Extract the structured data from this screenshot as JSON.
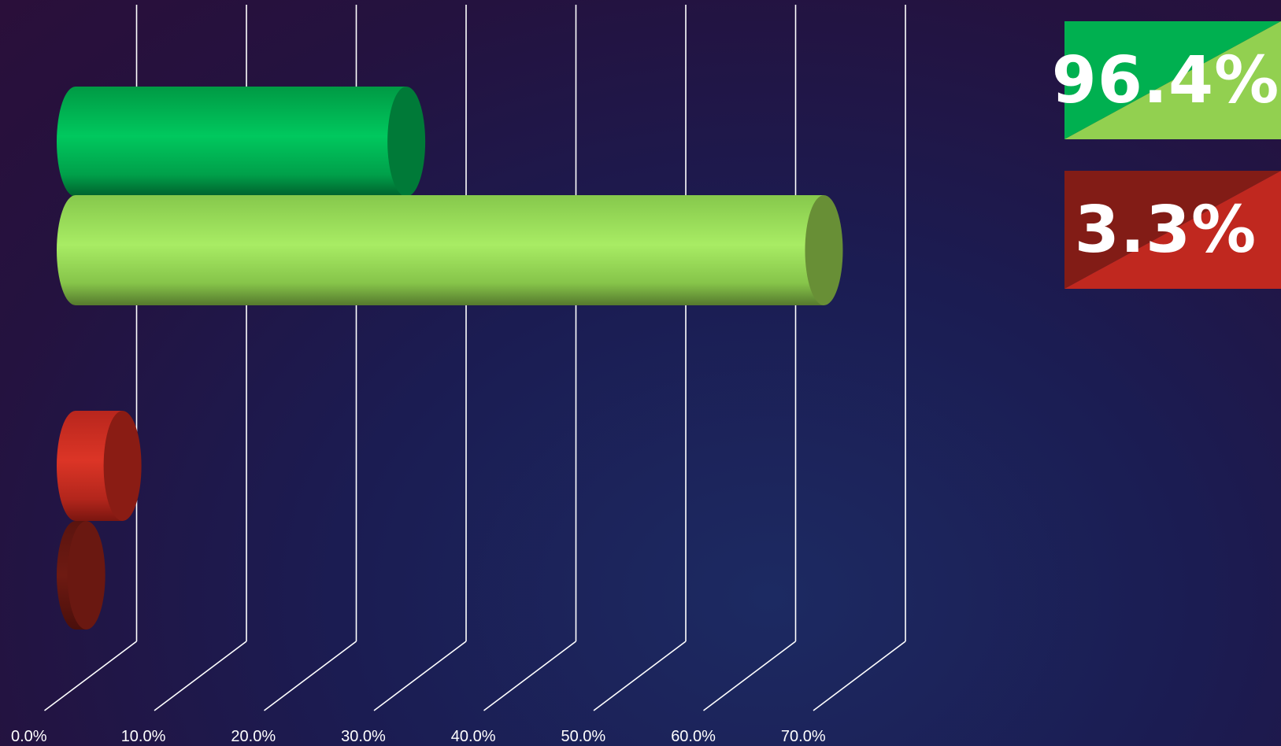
{
  "chart_data": {
    "type": "bar",
    "orientation": "horizontal",
    "style": "3d-cylinder",
    "title": "",
    "xlabel": "",
    "ylabel": "",
    "xlim": [
      0,
      70
    ],
    "x_ticks": [
      "0.0%",
      "10.0%",
      "20.0%",
      "30.0%",
      "40.0%",
      "50.0%",
      "60.0%",
      "70.0%"
    ],
    "grid": true,
    "legend": "none",
    "bars": [
      {
        "value": 30.9,
        "color": "#00b050",
        "group": 1
      },
      {
        "value": 69.0,
        "color": "#92d050",
        "group": 1
      },
      {
        "value": 5.0,
        "color": "#c0281f",
        "group": 2
      },
      {
        "value": 1.7,
        "color": "#6e1510",
        "group": 2
      }
    ]
  },
  "badges": [
    {
      "text": "96.4%",
      "color_primary": "#00b050",
      "color_secondary": "#92d050"
    },
    {
      "text": "3.3%",
      "color_primary": "#821c16",
      "color_secondary": "#c0281f"
    }
  ]
}
